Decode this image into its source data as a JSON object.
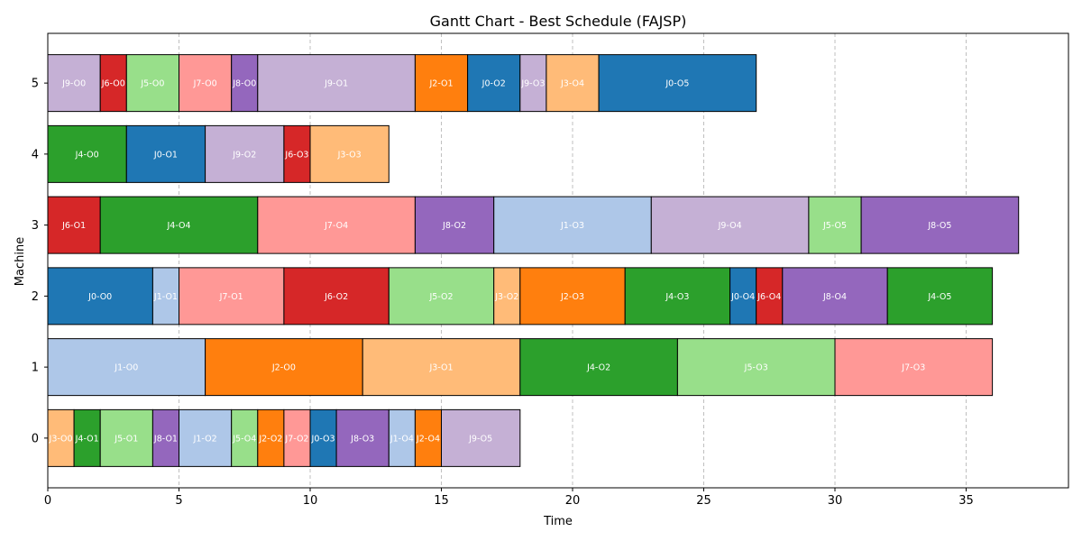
{
  "chart_data": {
    "type": "gantt",
    "title": "Gantt Chart - Best Schedule (FAJSP)",
    "xlabel": "Time",
    "ylabel": "Machine",
    "xlim": [
      0,
      38.9
    ],
    "ylim": [
      -0.7,
      5.7
    ],
    "x_ticks": [
      0,
      5,
      10,
      15,
      20,
      25,
      30,
      35
    ],
    "y_ticks": [
      0,
      1,
      2,
      3,
      4,
      5
    ],
    "grid": "x-dashed",
    "job_colors": {
      "J0": "#1f77b4",
      "J1": "#aec7e8",
      "J2": "#ff7f0e",
      "J3": "#ffbb78",
      "J4": "#2ca02c",
      "J5": "#98df8a",
      "J6": "#d62728",
      "J7": "#ff9896",
      "J8": "#9467bd",
      "J9": "#c5b0d5"
    },
    "tasks": [
      {
        "machine": 5,
        "start": 0,
        "end": 2,
        "job": "J9",
        "label": "J9-O0"
      },
      {
        "machine": 5,
        "start": 2,
        "end": 3,
        "job": "J6",
        "label": "J6-O0"
      },
      {
        "machine": 5,
        "start": 3,
        "end": 5,
        "job": "J5",
        "label": "J5-O0"
      },
      {
        "machine": 5,
        "start": 5,
        "end": 7,
        "job": "J7",
        "label": "J7-O0"
      },
      {
        "machine": 5,
        "start": 7,
        "end": 8,
        "job": "J8",
        "label": "J8-O0"
      },
      {
        "machine": 5,
        "start": 8,
        "end": 14,
        "job": "J9",
        "label": "J9-O1"
      },
      {
        "machine": 5,
        "start": 14,
        "end": 16,
        "job": "J2",
        "label": "J2-O1"
      },
      {
        "machine": 5,
        "start": 16,
        "end": 18,
        "job": "J0",
        "label": "J0-O2"
      },
      {
        "machine": 5,
        "start": 18,
        "end": 19,
        "job": "J9",
        "label": "J9-O3"
      },
      {
        "machine": 5,
        "start": 19,
        "end": 21,
        "job": "J3",
        "label": "J3-O4"
      },
      {
        "machine": 5,
        "start": 21,
        "end": 27,
        "job": "J0",
        "label": "J0-O5"
      },
      {
        "machine": 4,
        "start": 0,
        "end": 3,
        "job": "J4",
        "label": "J4-O0"
      },
      {
        "machine": 4,
        "start": 3,
        "end": 6,
        "job": "J0",
        "label": "J0-O1"
      },
      {
        "machine": 4,
        "start": 6,
        "end": 9,
        "job": "J9",
        "label": "J9-O2"
      },
      {
        "machine": 4,
        "start": 9,
        "end": 10,
        "job": "J6",
        "label": "J6-O3"
      },
      {
        "machine": 4,
        "start": 10,
        "end": 13,
        "job": "J3",
        "label": "J3-O3"
      },
      {
        "machine": 3,
        "start": 0,
        "end": 2,
        "job": "J6",
        "label": "J6-O1"
      },
      {
        "machine": 3,
        "start": 2,
        "end": 8,
        "job": "J4",
        "label": "J4-O4"
      },
      {
        "machine": 3,
        "start": 8,
        "end": 14,
        "job": "J7",
        "label": "J7-O4"
      },
      {
        "machine": 3,
        "start": 14,
        "end": 17,
        "job": "J8",
        "label": "J8-O2"
      },
      {
        "machine": 3,
        "start": 17,
        "end": 23,
        "job": "J1",
        "label": "J1-O3"
      },
      {
        "machine": 3,
        "start": 23,
        "end": 29,
        "job": "J9",
        "label": "J9-O4"
      },
      {
        "machine": 3,
        "start": 29,
        "end": 31,
        "job": "J5",
        "label": "J5-O5"
      },
      {
        "machine": 3,
        "start": 31,
        "end": 37,
        "job": "J8",
        "label": "J8-O5"
      },
      {
        "machine": 2,
        "start": 0,
        "end": 4,
        "job": "J0",
        "label": "J0-O0"
      },
      {
        "machine": 2,
        "start": 4,
        "end": 5,
        "job": "J1",
        "label": "J1-O1"
      },
      {
        "machine": 2,
        "start": 5,
        "end": 9,
        "job": "J7",
        "label": "J7-O1"
      },
      {
        "machine": 2,
        "start": 9,
        "end": 13,
        "job": "J6",
        "label": "J6-O2"
      },
      {
        "machine": 2,
        "start": 13,
        "end": 17,
        "job": "J5",
        "label": "J5-O2"
      },
      {
        "machine": 2,
        "start": 17,
        "end": 18,
        "job": "J3",
        "label": "J3-O2"
      },
      {
        "machine": 2,
        "start": 18,
        "end": 22,
        "job": "J2",
        "label": "J2-O3"
      },
      {
        "machine": 2,
        "start": 22,
        "end": 26,
        "job": "J4",
        "label": "J4-O3"
      },
      {
        "machine": 2,
        "start": 26,
        "end": 27,
        "job": "J0",
        "label": "J0-O4"
      },
      {
        "machine": 2,
        "start": 27,
        "end": 28,
        "job": "J6",
        "label": "J6-O4"
      },
      {
        "machine": 2,
        "start": 28,
        "end": 32,
        "job": "J8",
        "label": "J8-O4"
      },
      {
        "machine": 2,
        "start": 32,
        "end": 36,
        "job": "J4",
        "label": "J4-O5"
      },
      {
        "machine": 1,
        "start": 0,
        "end": 6,
        "job": "J1",
        "label": "J1-O0"
      },
      {
        "machine": 1,
        "start": 6,
        "end": 12,
        "job": "J2",
        "label": "J2-O0"
      },
      {
        "machine": 1,
        "start": 12,
        "end": 18,
        "job": "J3",
        "label": "J3-O1"
      },
      {
        "machine": 1,
        "start": 18,
        "end": 24,
        "job": "J4",
        "label": "J4-O2"
      },
      {
        "machine": 1,
        "start": 24,
        "end": 30,
        "job": "J5",
        "label": "J5-O3"
      },
      {
        "machine": 1,
        "start": 30,
        "end": 36,
        "job": "J7",
        "label": "J7-O3"
      },
      {
        "machine": 0,
        "start": 0,
        "end": 1,
        "job": "J3",
        "label": "J3-O0"
      },
      {
        "machine": 0,
        "start": 1,
        "end": 2,
        "job": "J4",
        "label": "J4-O1"
      },
      {
        "machine": 0,
        "start": 2,
        "end": 4,
        "job": "J5",
        "label": "J5-O1"
      },
      {
        "machine": 0,
        "start": 4,
        "end": 5,
        "job": "J8",
        "label": "J8-O1"
      },
      {
        "machine": 0,
        "start": 5,
        "end": 7,
        "job": "J1",
        "label": "J1-O2"
      },
      {
        "machine": 0,
        "start": 7,
        "end": 8,
        "job": "J5",
        "label": "J5-O4"
      },
      {
        "machine": 0,
        "start": 8,
        "end": 9,
        "job": "J2",
        "label": "J2-O2"
      },
      {
        "machine": 0,
        "start": 9,
        "end": 10,
        "job": "J7",
        "label": "J7-O2"
      },
      {
        "machine": 0,
        "start": 10,
        "end": 11,
        "job": "J0",
        "label": "J0-O3"
      },
      {
        "machine": 0,
        "start": 11,
        "end": 13,
        "job": "J8",
        "label": "J8-O3"
      },
      {
        "machine": 0,
        "start": 13,
        "end": 14,
        "job": "J1",
        "label": "J1-O4"
      },
      {
        "machine": 0,
        "start": 14,
        "end": 15,
        "job": "J2",
        "label": "J2-O4"
      },
      {
        "machine": 0,
        "start": 15,
        "end": 18,
        "job": "J9",
        "label": "J9-O5"
      }
    ]
  }
}
